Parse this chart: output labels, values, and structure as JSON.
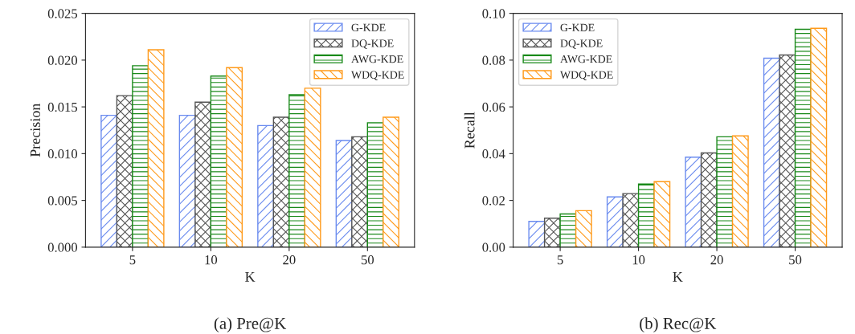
{
  "chart_data": [
    {
      "type": "bar",
      "title": "(a) Pre@K",
      "xlabel": "K",
      "ylabel": "Precision",
      "categories": [
        "5",
        "10",
        "20",
        "50"
      ],
      "ylim": [
        0,
        0.025
      ],
      "yticks": [
        {
          "value": 0,
          "label": "0.000"
        },
        {
          "value": 0.005,
          "label": "0.005"
        },
        {
          "value": 0.01,
          "label": "0.010"
        },
        {
          "value": 0.015,
          "label": "0.015"
        },
        {
          "value": 0.02,
          "label": "0.020"
        },
        {
          "value": 0.025,
          "label": "0.025"
        }
      ],
      "legend": "top right",
      "grid": false,
      "series": [
        {
          "name": "G-KDE",
          "color": "#6a8bef",
          "values": [
            0.0141,
            0.0141,
            0.013,
            0.0114
          ]
        },
        {
          "name": "DQ-KDE",
          "color": "#555555",
          "values": [
            0.0162,
            0.0155,
            0.0139,
            0.0118
          ]
        },
        {
          "name": "AWG-KDE",
          "color": "#1a8a1a",
          "values": [
            0.0194,
            0.0183,
            0.0163,
            0.0133
          ]
        },
        {
          "name": "WDQ-KDE",
          "color": "#ff9a1a",
          "values": [
            0.0211,
            0.0192,
            0.017,
            0.0139
          ]
        }
      ]
    },
    {
      "type": "bar",
      "title": "(b) Rec@K",
      "xlabel": "K",
      "ylabel": "Recall",
      "categories": [
        "5",
        "10",
        "20",
        "50"
      ],
      "ylim": [
        0,
        0.1
      ],
      "yticks": [
        {
          "value": 0,
          "label": "0.00"
        },
        {
          "value": 0.02,
          "label": "0.02"
        },
        {
          "value": 0.04,
          "label": "0.04"
        },
        {
          "value": 0.06,
          "label": "0.06"
        },
        {
          "value": 0.08,
          "label": "0.08"
        },
        {
          "value": 0.1,
          "label": "0.10"
        }
      ],
      "legend": "top left",
      "grid": false,
      "series": [
        {
          "name": "G-KDE",
          "color": "#6a8bef",
          "values": [
            0.011,
            0.0215,
            0.0385,
            0.0808
          ]
        },
        {
          "name": "DQ-KDE",
          "color": "#555555",
          "values": [
            0.0124,
            0.0229,
            0.0403,
            0.0822
          ]
        },
        {
          "name": "AWG-KDE",
          "color": "#1a8a1a",
          "values": [
            0.0142,
            0.027,
            0.0472,
            0.0932
          ]
        },
        {
          "name": "WDQ-KDE",
          "color": "#ff9a1a",
          "values": [
            0.0156,
            0.028,
            0.0476,
            0.0936
          ]
        }
      ]
    }
  ]
}
